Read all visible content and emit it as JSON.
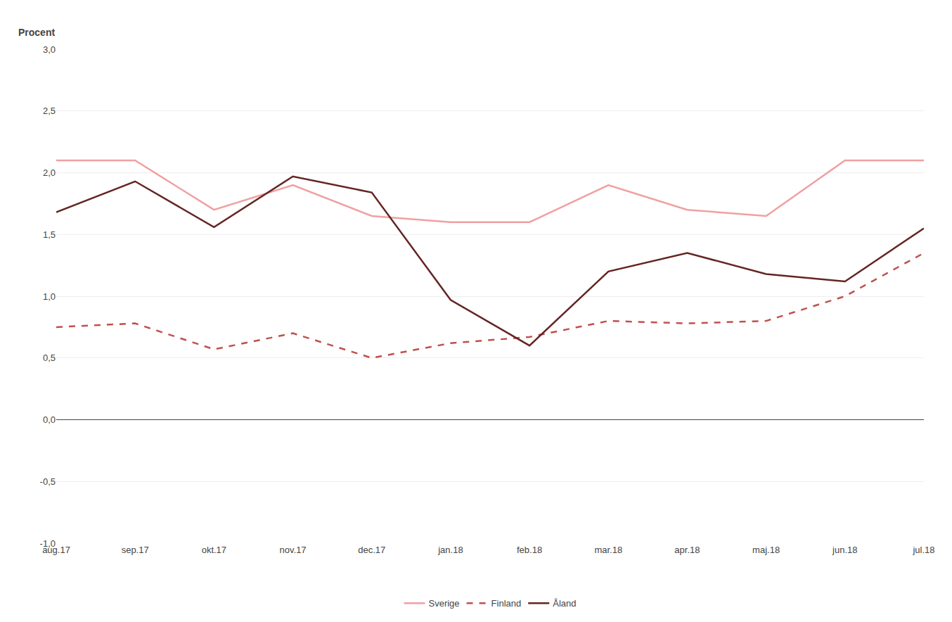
{
  "chart_data": {
    "type": "line",
    "ylabel": "Procent",
    "categories": [
      "aug.17",
      "sep.17",
      "okt.17",
      "nov.17",
      "dec.17",
      "jan.18",
      "feb.18",
      "mar.18",
      "apr.18",
      "maj.18",
      "jun.18",
      "jul.18"
    ],
    "series": [
      {
        "name": "Sverige",
        "color": "#f0a0a0",
        "line_style": "solid",
        "values": [
          2.1,
          2.1,
          1.7,
          1.9,
          1.65,
          1.6,
          1.6,
          1.9,
          1.7,
          1.65,
          2.1,
          2.1
        ]
      },
      {
        "name": "Finland",
        "color": "#c0504d",
        "line_style": "dashed",
        "values": [
          0.75,
          0.78,
          0.57,
          0.7,
          0.5,
          0.62,
          0.67,
          0.8,
          0.78,
          0.8,
          1.0,
          1.35
        ]
      },
      {
        "name": "Åland",
        "color": "#632523",
        "line_style": "solid",
        "values": [
          1.68,
          1.93,
          1.56,
          1.97,
          1.84,
          0.97,
          0.6,
          1.2,
          1.35,
          1.18,
          1.12,
          1.55
        ]
      }
    ],
    "ylim": [
      -1.0,
      3.0
    ],
    "yticks": [
      {
        "value": -1.0,
        "label": "-1,0"
      },
      {
        "value": -0.5,
        "label": "-0,5"
      },
      {
        "value": 0.0,
        "label": "0,0"
      },
      {
        "value": 0.5,
        "label": "0,5"
      },
      {
        "value": 1.0,
        "label": "1,0"
      },
      {
        "value": 1.5,
        "label": "1,5"
      },
      {
        "value": 2.0,
        "label": "2,0"
      },
      {
        "value": 2.5,
        "label": "2,5"
      },
      {
        "value": 3.0,
        "label": "3,0"
      }
    ],
    "grid": true,
    "legend": "bottom"
  }
}
